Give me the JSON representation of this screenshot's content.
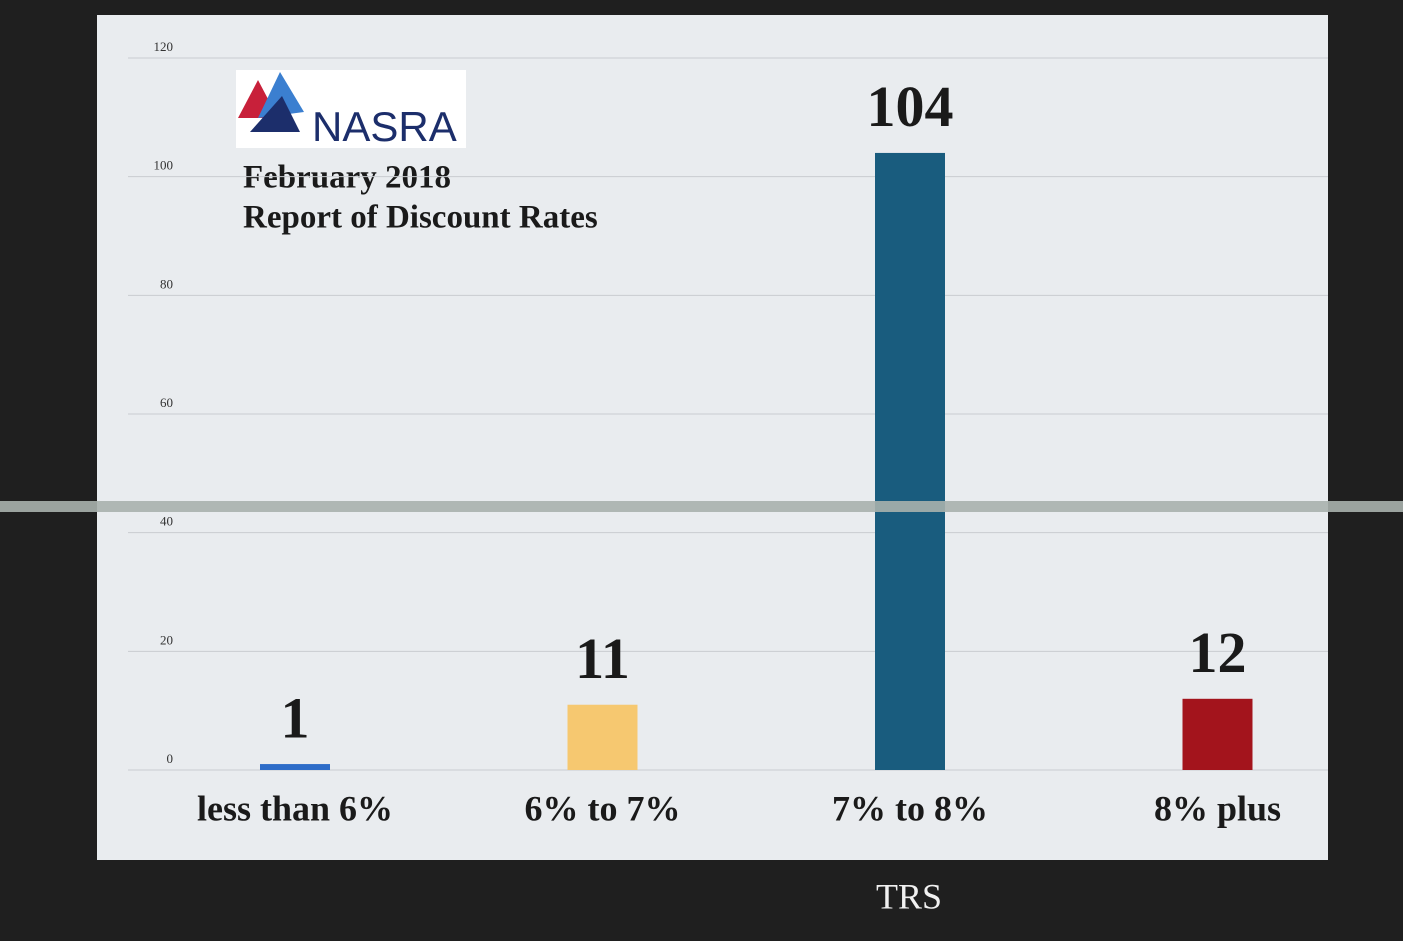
{
  "chart_data": {
    "type": "bar",
    "logo_text": "NASRA",
    "title": "February 2018",
    "subtitle": "Report of Discount Rates",
    "x_label": "TRS",
    "categories": [
      "less than 6%",
      "6% to 7%",
      "7% to 8%",
      "8% plus"
    ],
    "values": [
      1,
      11,
      104,
      12
    ],
    "colors": [
      "#2d6cc8",
      "#f6c870",
      "#195c7e",
      "#a3141c"
    ],
    "ylim": [
      0,
      120
    ],
    "yticks": [
      0,
      20,
      40,
      60,
      80,
      100,
      120
    ],
    "grid": true
  }
}
